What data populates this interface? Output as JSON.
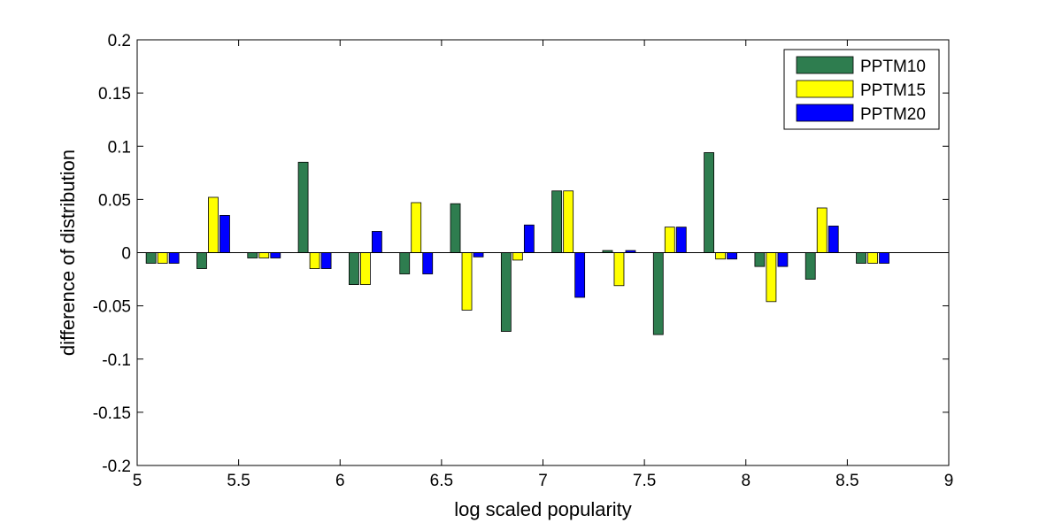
{
  "chart_data": {
    "type": "bar",
    "title": "",
    "xlabel": "log scaled popularity",
    "ylabel": "difference of distribution",
    "xlim": [
      5,
      9
    ],
    "ylim": [
      -0.2,
      0.2
    ],
    "xticks": [
      "5",
      "5.5",
      "6",
      "6.5",
      "7",
      "7.5",
      "8",
      "8.5",
      "9"
    ],
    "yticks": [
      "0.2",
      "0.15",
      "0.1",
      "0.05",
      "0",
      "-0.05",
      "-0.1",
      "-0.15",
      "-0.2"
    ],
    "grid": false,
    "legend_position": "top-right",
    "x": [
      5.125,
      5.375,
      5.625,
      5.875,
      6.125,
      6.375,
      6.625,
      6.875,
      7.125,
      7.375,
      7.625,
      7.875,
      8.125,
      8.375,
      8.625
    ],
    "series": [
      {
        "name": "PPTM10",
        "color": "#2e7d4f",
        "values": [
          -0.01,
          -0.015,
          -0.005,
          0.085,
          -0.03,
          -0.02,
          0.046,
          -0.074,
          0.058,
          0.002,
          -0.077,
          0.094,
          -0.013,
          -0.025,
          -0.01
        ]
      },
      {
        "name": "PPTM15",
        "color": "#ffff00",
        "values": [
          -0.01,
          0.052,
          -0.005,
          -0.015,
          -0.03,
          0.047,
          -0.054,
          -0.007,
          0.058,
          -0.031,
          0.024,
          -0.006,
          -0.046,
          0.042,
          -0.01
        ]
      },
      {
        "name": "PPTM20",
        "color": "#0000ff",
        "values": [
          -0.01,
          0.035,
          -0.005,
          -0.015,
          0.02,
          -0.02,
          -0.004,
          0.026,
          -0.042,
          0.002,
          0.024,
          -0.006,
          -0.013,
          0.025,
          -0.01
        ]
      }
    ]
  }
}
